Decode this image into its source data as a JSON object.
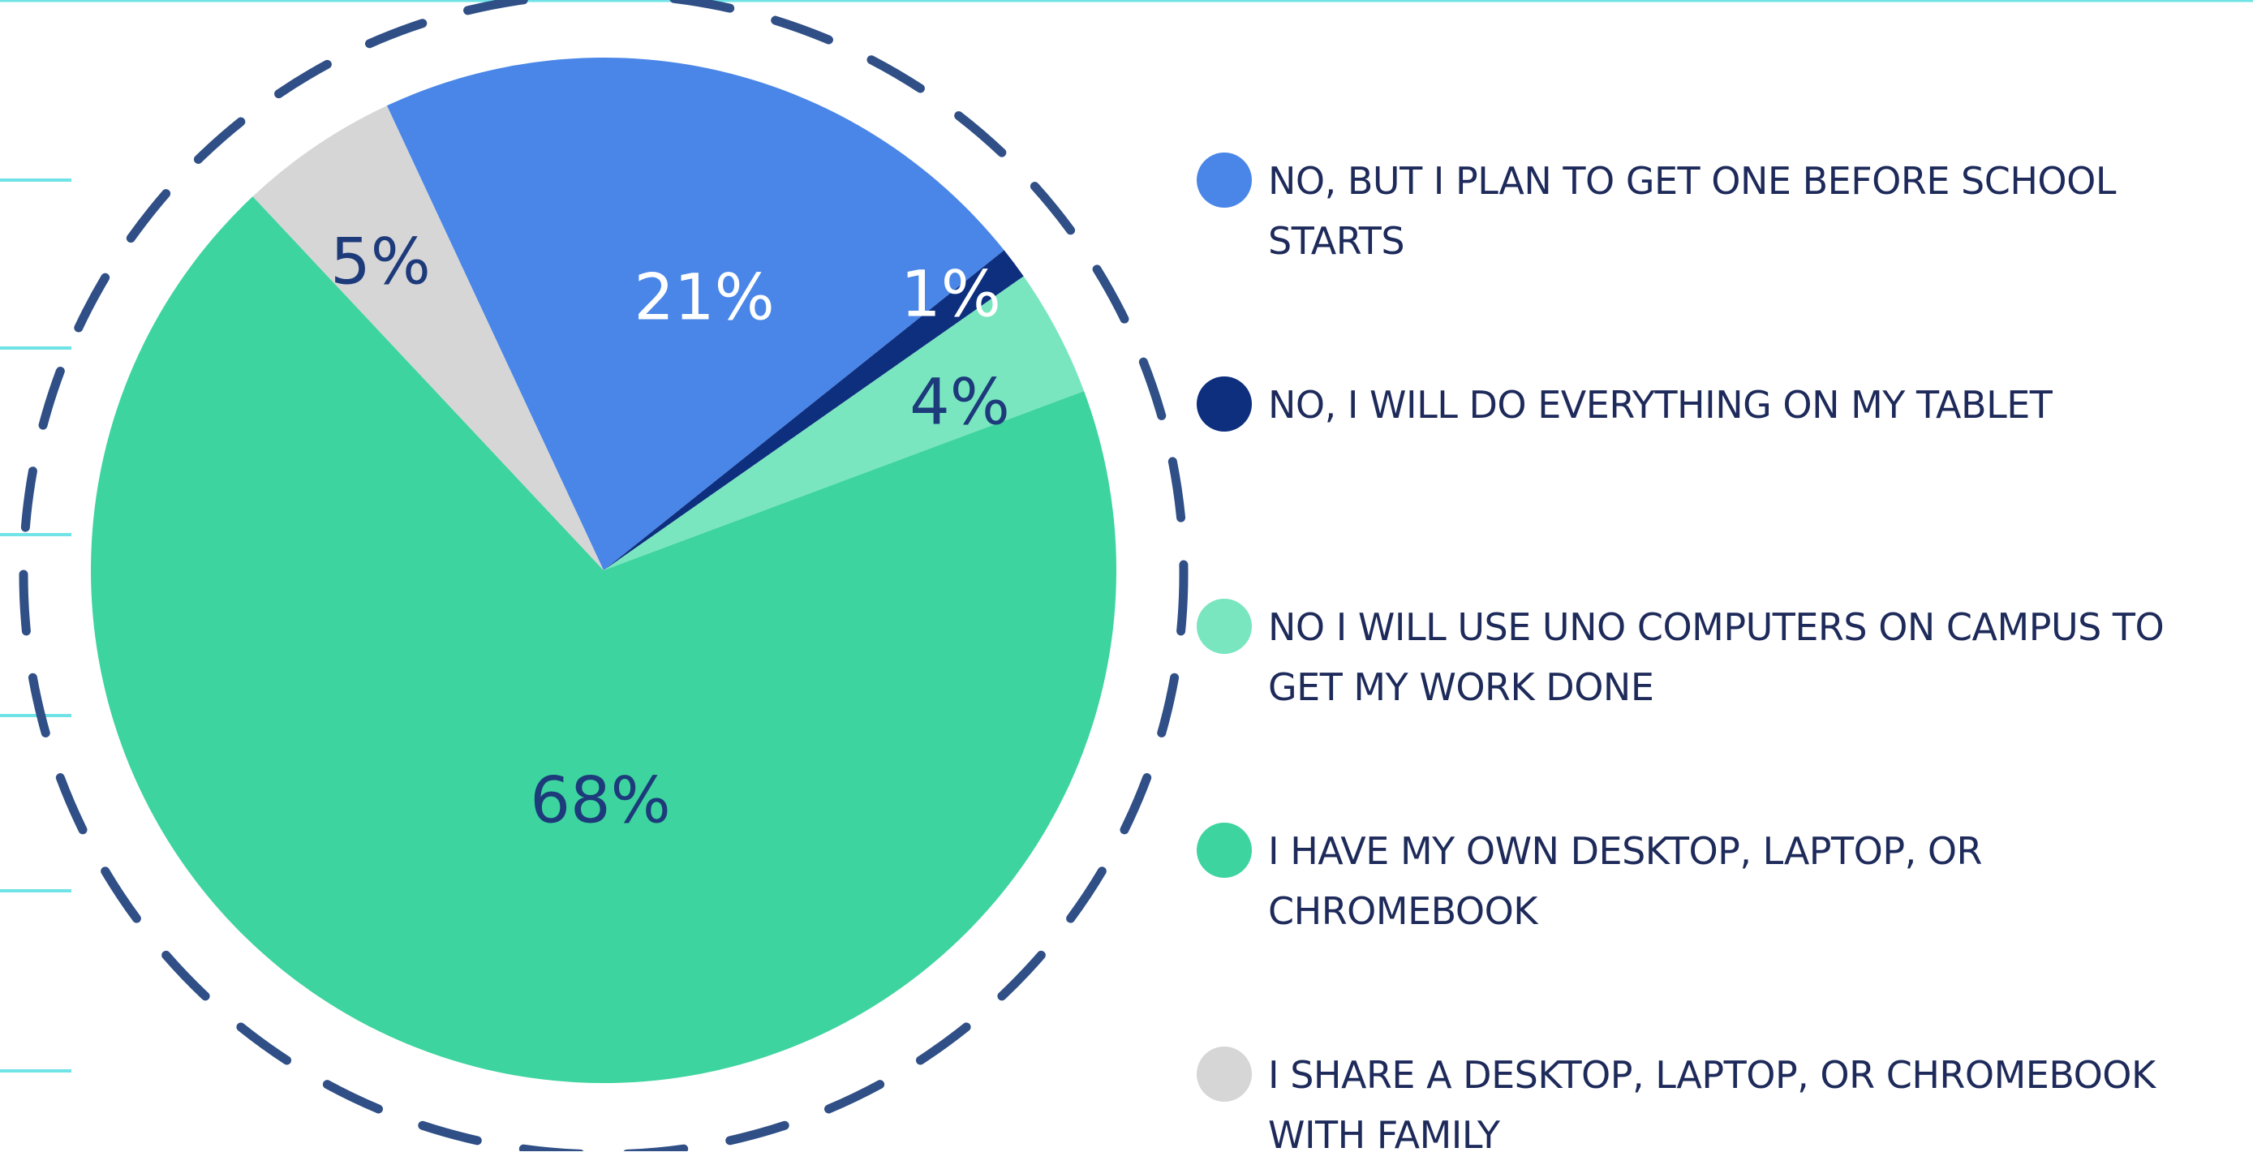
{
  "chart_data": {
    "type": "pie",
    "categories": [
      "NO, BUT I PLAN TO GET ONE BEFORE SCHOOL STARTS",
      "NO, I WILL DO EVERYTHING ON MY TABLET",
      "NO I WILL USE UNO COMPUTERS ON CAMPUS TO GET MY WORK DONE",
      "I HAVE MY OWN DESKTOP, LAPTOP, OR CHROMEBOOK",
      "I SHARE A DESKTOP, LAPTOP, OR CHROMEBOOK WITH FAMILY"
    ],
    "values": [
      21,
      1,
      4,
      68,
      5
    ],
    "value_labels": [
      "21%",
      "1%",
      "4%",
      "68%",
      "5%"
    ],
    "colors": [
      "#4a86e8",
      "#0e2f7e",
      "#79e6c0",
      "#3dd49f",
      "#d6d6d6"
    ],
    "legend": "right"
  }
}
